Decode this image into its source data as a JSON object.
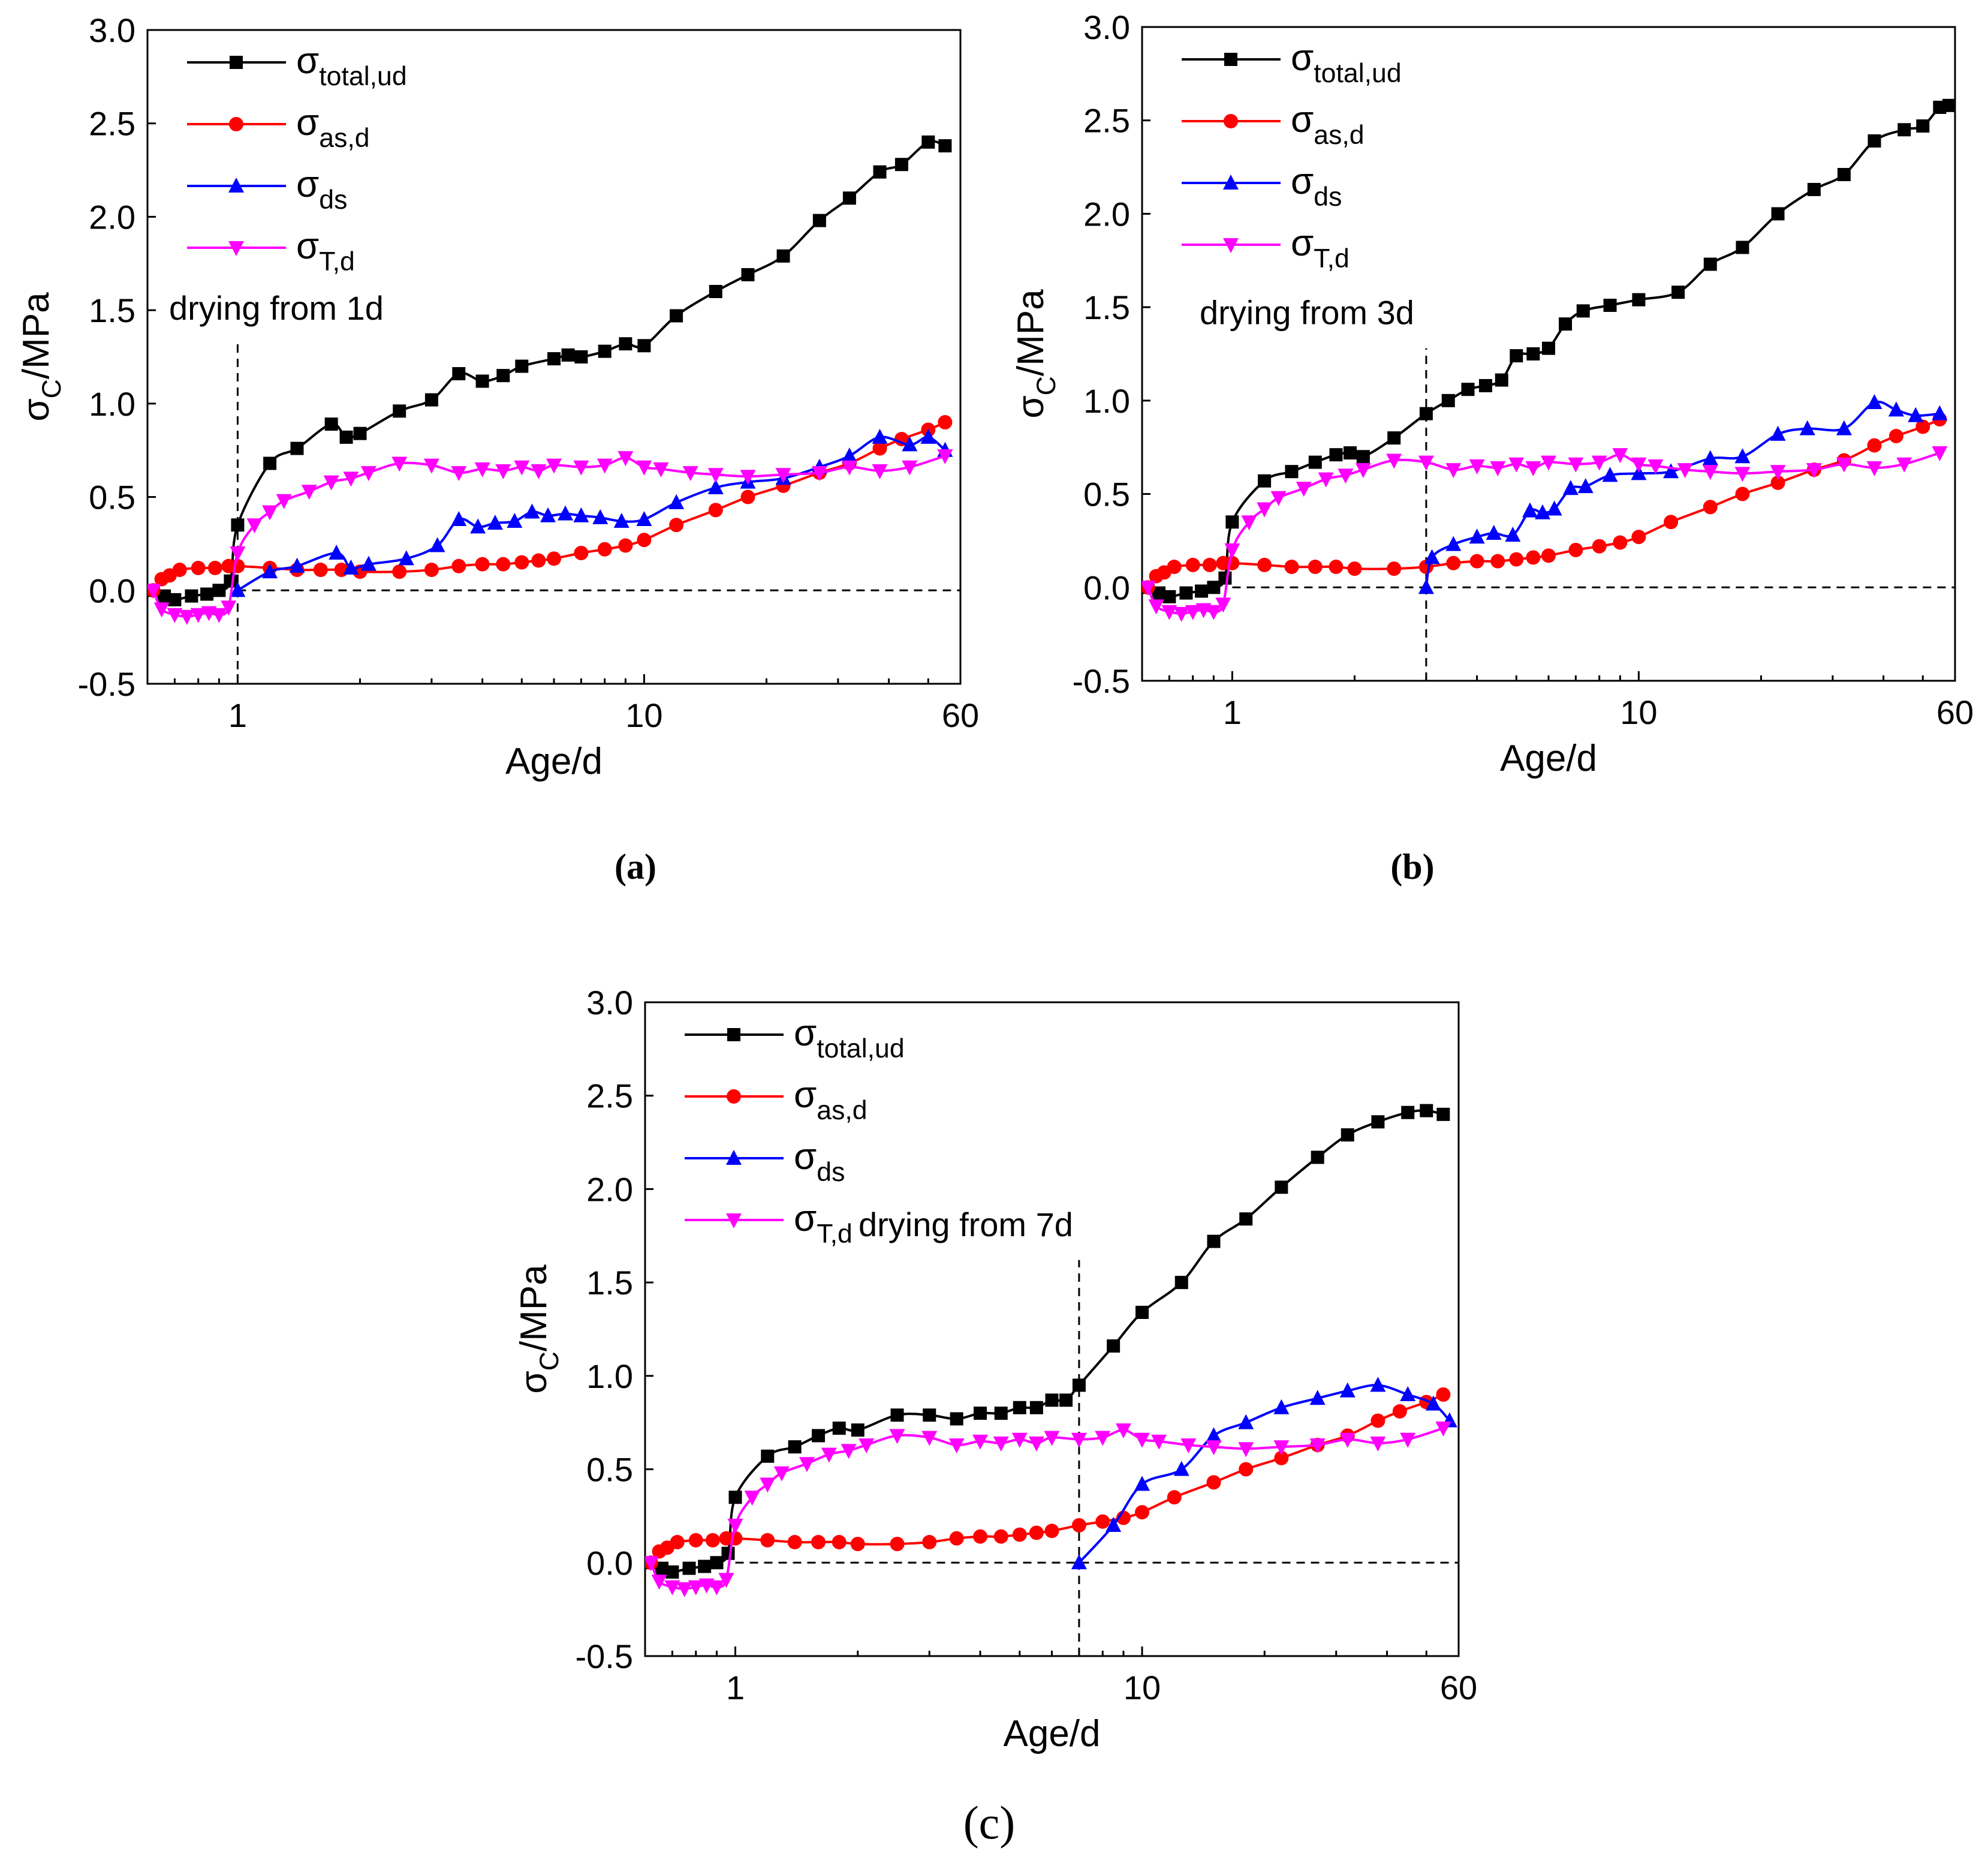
{
  "figure": {
    "panels": [
      {
        "caption": "(a)"
      },
      {
        "caption": "(b)"
      },
      {
        "caption": "(c)"
      }
    ]
  },
  "chart_data": [
    {
      "id": "a",
      "type": "line",
      "caption": "(a)",
      "xlabel": "Age/d",
      "ylabel": {
        "base": "σ",
        "sub": "C",
        "rest": "/MPa"
      },
      "xscale": "log",
      "xlim": [
        0.6,
        60
      ],
      "ylim": [
        -0.5,
        3.0
      ],
      "xticks": [
        1,
        10,
        60
      ],
      "xtick_labels": [
        "1",
        "10",
        "60"
      ],
      "yticks": [
        -0.5,
        0.0,
        0.5,
        1.0,
        1.5,
        2.0,
        2.5,
        3.0
      ],
      "ytick_labels": [
        "-0.5",
        "0.0",
        "0.5",
        "1.0",
        "1.5",
        "2.0",
        "2.5",
        "3.0"
      ],
      "annotation": {
        "text": "drying from 1d",
        "drying_start": 1
      },
      "legend_position": "top-left",
      "series": [
        {
          "key": "total",
          "name": {
            "base": "σ",
            "sub": "total,ud"
          },
          "color": "#000000",
          "marker": "square",
          "x": [
            0.62,
            0.66,
            0.7,
            0.77,
            0.84,
            0.9,
            0.96,
            1.0,
            1.2,
            1.4,
            1.7,
            1.85,
            2.0,
            2.5,
            3.0,
            3.5,
            4.0,
            4.5,
            5.0,
            6.0,
            6.5,
            7.0,
            8.0,
            9.0,
            10.0,
            12.0,
            15.0,
            18.0,
            22.0,
            27.0,
            32.0,
            38.0,
            43.0,
            50.0,
            55.0
          ],
          "y": [
            0.0,
            -0.03,
            -0.05,
            -0.03,
            -0.02,
            0.0,
            0.05,
            0.35,
            0.68,
            0.76,
            0.89,
            0.82,
            0.84,
            0.96,
            1.02,
            1.16,
            1.12,
            1.15,
            1.2,
            1.24,
            1.26,
            1.25,
            1.28,
            1.32,
            1.31,
            1.47,
            1.6,
            1.69,
            1.79,
            1.98,
            2.1,
            2.24,
            2.28,
            2.4,
            2.38
          ]
        },
        {
          "key": "as",
          "name": {
            "base": "σ",
            "sub": "as,d"
          },
          "color": "#ff0000",
          "marker": "circle",
          "x": [
            0.62,
            0.65,
            0.68,
            0.72,
            0.8,
            0.88,
            0.95,
            1.0,
            1.2,
            1.4,
            1.6,
            1.8,
            2.0,
            2.5,
            3.0,
            3.5,
            4.0,
            4.5,
            5.0,
            5.5,
            6.0,
            7.0,
            8.0,
            9.0,
            10.0,
            12.0,
            15.0,
            18.0,
            22.0,
            27.0,
            32.0,
            38.0,
            43.0,
            50.0,
            55.0
          ],
          "y": [
            0.0,
            0.06,
            0.08,
            0.11,
            0.12,
            0.12,
            0.13,
            0.13,
            0.12,
            0.11,
            0.11,
            0.11,
            0.1,
            0.1,
            0.11,
            0.13,
            0.14,
            0.14,
            0.15,
            0.16,
            0.17,
            0.2,
            0.22,
            0.24,
            0.27,
            0.35,
            0.43,
            0.5,
            0.56,
            0.63,
            0.68,
            0.76,
            0.81,
            0.86,
            0.9
          ]
        },
        {
          "key": "ds",
          "name": {
            "base": "σ",
            "sub": "ds"
          },
          "color": "#0000ff",
          "marker": "triangle-up",
          "x": [
            1.0,
            1.2,
            1.4,
            1.75,
            1.9,
            2.1,
            2.6,
            3.1,
            3.5,
            3.9,
            4.3,
            4.8,
            5.3,
            5.8,
            6.4,
            7.0,
            7.8,
            8.8,
            10.0,
            12.0,
            15.0,
            18.0,
            22.0,
            27.0,
            32.0,
            38.0,
            45.0,
            50.0,
            55.0
          ],
          "y": [
            0.0,
            0.1,
            0.13,
            0.2,
            0.12,
            0.14,
            0.17,
            0.24,
            0.38,
            0.34,
            0.36,
            0.37,
            0.42,
            0.4,
            0.41,
            0.4,
            0.39,
            0.37,
            0.38,
            0.47,
            0.55,
            0.58,
            0.6,
            0.66,
            0.72,
            0.82,
            0.78,
            0.82,
            0.75
          ]
        },
        {
          "key": "T",
          "name": {
            "base": "σ",
            "sub": "T,d"
          },
          "color": "#ff00ff",
          "marker": "triangle-down",
          "x": [
            0.62,
            0.65,
            0.7,
            0.75,
            0.8,
            0.85,
            0.9,
            0.95,
            1.0,
            1.1,
            1.2,
            1.3,
            1.5,
            1.7,
            1.9,
            2.1,
            2.5,
            3.0,
            3.5,
            4.0,
            4.5,
            5.0,
            5.5,
            6.0,
            7.0,
            8.0,
            9.0,
            10.0,
            11.0,
            13.0,
            15.0,
            18.0,
            22.0,
            27.0,
            32.0,
            38.0,
            45.0,
            55.0
          ],
          "y": [
            0.0,
            -0.1,
            -0.13,
            -0.14,
            -0.13,
            -0.12,
            -0.13,
            -0.09,
            0.2,
            0.35,
            0.42,
            0.48,
            0.53,
            0.58,
            0.6,
            0.63,
            0.68,
            0.67,
            0.63,
            0.65,
            0.64,
            0.66,
            0.64,
            0.67,
            0.66,
            0.67,
            0.71,
            0.66,
            0.65,
            0.63,
            0.62,
            0.61,
            0.62,
            0.63,
            0.66,
            0.64,
            0.66,
            0.72
          ]
        }
      ]
    },
    {
      "id": "b",
      "type": "line",
      "caption": "(b)",
      "xlabel": "Age/d",
      "ylabel": {
        "base": "σ",
        "sub": "C",
        "rest": "/MPa"
      },
      "xscale": "log",
      "xlim": [
        0.6,
        60
      ],
      "ylim": [
        -0.5,
        3.0
      ],
      "xticks": [
        1,
        10,
        60
      ],
      "xtick_labels": [
        "1",
        "10",
        "60"
      ],
      "yticks": [
        -0.5,
        0.0,
        0.5,
        1.0,
        1.5,
        2.0,
        2.5,
        3.0
      ],
      "ytick_labels": [
        "-0.5",
        "0.0",
        "0.5",
        "1.0",
        "1.5",
        "2.0",
        "2.5",
        "3.0"
      ],
      "annotation": {
        "text": "drying from 3d",
        "drying_start": 3
      },
      "legend_position": "top-left",
      "series": [
        {
          "key": "total",
          "name": {
            "base": "σ",
            "sub": "total,ud"
          },
          "color": "#000000",
          "marker": "square",
          "x": [
            0.62,
            0.66,
            0.7,
            0.77,
            0.84,
            0.9,
            0.96,
            1.0,
            1.2,
            1.4,
            1.6,
            1.8,
            1.95,
            2.1,
            2.5,
            3.0,
            3.4,
            3.8,
            4.2,
            4.6,
            5.0,
            5.5,
            6.0,
            6.6,
            7.3,
            8.5,
            10.0,
            12.5,
            15.0,
            18.0,
            22.0,
            27.0,
            32.0,
            38.0,
            45.0,
            50.0,
            55.0,
            58.0
          ],
          "y": [
            0.0,
            -0.03,
            -0.05,
            -0.03,
            -0.02,
            0.0,
            0.05,
            0.35,
            0.57,
            0.62,
            0.67,
            0.71,
            0.72,
            0.7,
            0.8,
            0.93,
            1.0,
            1.06,
            1.08,
            1.11,
            1.24,
            1.25,
            1.28,
            1.41,
            1.48,
            1.51,
            1.54,
            1.58,
            1.73,
            1.82,
            2.0,
            2.13,
            2.21,
            2.39,
            2.45,
            2.47,
            2.57,
            2.58
          ]
        },
        {
          "key": "as",
          "name": {
            "base": "σ",
            "sub": "as,d"
          },
          "color": "#ff0000",
          "marker": "circle",
          "x": [
            0.62,
            0.65,
            0.68,
            0.72,
            0.8,
            0.88,
            0.95,
            1.0,
            1.2,
            1.4,
            1.6,
            1.8,
            2.0,
            2.5,
            3.0,
            3.5,
            4.0,
            4.5,
            5.0,
            5.5,
            6.0,
            7.0,
            8.0,
            9.0,
            10.0,
            12.0,
            15.0,
            18.0,
            22.0,
            27.0,
            32.0,
            38.0,
            43.0,
            50.0,
            55.0
          ],
          "y": [
            0.0,
            0.06,
            0.08,
            0.11,
            0.12,
            0.12,
            0.13,
            0.13,
            0.12,
            0.11,
            0.11,
            0.11,
            0.1,
            0.1,
            0.11,
            0.13,
            0.14,
            0.14,
            0.15,
            0.16,
            0.17,
            0.2,
            0.22,
            0.24,
            0.27,
            0.35,
            0.43,
            0.5,
            0.56,
            0.63,
            0.68,
            0.76,
            0.81,
            0.86,
            0.9
          ]
        },
        {
          "key": "ds",
          "name": {
            "base": "σ",
            "sub": "ds"
          },
          "color": "#0000ff",
          "marker": "triangle-up",
          "x": [
            3.0,
            3.1,
            3.5,
            4.0,
            4.4,
            4.9,
            5.4,
            5.8,
            6.2,
            6.8,
            7.4,
            8.5,
            10.0,
            12.0,
            15.0,
            18.0,
            22.0,
            26.0,
            32.0,
            38.0,
            43.0,
            48.0,
            55.0
          ],
          "y": [
            0.0,
            0.16,
            0.23,
            0.27,
            0.29,
            0.28,
            0.41,
            0.4,
            0.42,
            0.53,
            0.54,
            0.6,
            0.61,
            0.62,
            0.69,
            0.7,
            0.82,
            0.85,
            0.85,
            0.99,
            0.95,
            0.92,
            0.93
          ]
        },
        {
          "key": "T",
          "name": {
            "base": "σ",
            "sub": "T,d"
          },
          "color": "#ff00ff",
          "marker": "triangle-down",
          "x": [
            0.62,
            0.65,
            0.7,
            0.75,
            0.8,
            0.85,
            0.9,
            0.95,
            1.0,
            1.1,
            1.2,
            1.3,
            1.5,
            1.7,
            1.9,
            2.1,
            2.5,
            3.0,
            3.5,
            4.0,
            4.5,
            5.0,
            5.5,
            6.0,
            7.0,
            8.0,
            9.0,
            10.0,
            11.0,
            13.0,
            15.0,
            18.0,
            22.0,
            27.0,
            32.0,
            38.0,
            45.0,
            55.0
          ],
          "y": [
            0.0,
            -0.1,
            -0.13,
            -0.14,
            -0.13,
            -0.12,
            -0.13,
            -0.09,
            0.2,
            0.35,
            0.42,
            0.48,
            0.53,
            0.58,
            0.6,
            0.63,
            0.68,
            0.67,
            0.63,
            0.65,
            0.64,
            0.66,
            0.64,
            0.67,
            0.66,
            0.67,
            0.71,
            0.66,
            0.65,
            0.63,
            0.62,
            0.61,
            0.62,
            0.63,
            0.66,
            0.64,
            0.66,
            0.72
          ]
        }
      ]
    },
    {
      "id": "c",
      "type": "line",
      "caption": "(c)",
      "xlabel": "Age/d",
      "ylabel": {
        "base": "σ",
        "sub": "C",
        "rest": "/MPa"
      },
      "xscale": "log",
      "xlim": [
        0.6,
        60
      ],
      "ylim": [
        -0.5,
        3.0
      ],
      "xticks": [
        1,
        10,
        60
      ],
      "xtick_labels": [
        "1",
        "10",
        "60"
      ],
      "yticks": [
        -0.5,
        0.0,
        0.5,
        1.0,
        1.5,
        2.0,
        2.5,
        3.0
      ],
      "ytick_labels": [
        "-0.5",
        "0.0",
        "0.5",
        "1.0",
        "1.5",
        "2.0",
        "2.5",
        "3.0"
      ],
      "annotation": {
        "text": "drying from 7d",
        "drying_start": 7
      },
      "legend_position": "top-left",
      "series": [
        {
          "key": "total",
          "name": {
            "base": "σ",
            "sub": "total,ud"
          },
          "color": "#000000",
          "marker": "square",
          "x": [
            0.62,
            0.66,
            0.7,
            0.77,
            0.84,
            0.9,
            0.96,
            1.0,
            1.2,
            1.4,
            1.6,
            1.8,
            2.0,
            2.5,
            3.0,
            3.5,
            4.0,
            4.5,
            5.0,
            5.5,
            6.0,
            6.5,
            7.0,
            8.5,
            10.0,
            12.5,
            15.0,
            18.0,
            22.0,
            27.0,
            32.0,
            38.0,
            45.0,
            50.0,
            55.0
          ],
          "y": [
            0.0,
            -0.03,
            -0.05,
            -0.03,
            -0.02,
            0.0,
            0.05,
            0.35,
            0.57,
            0.62,
            0.68,
            0.72,
            0.71,
            0.79,
            0.79,
            0.77,
            0.8,
            0.8,
            0.83,
            0.83,
            0.87,
            0.87,
            0.95,
            1.16,
            1.34,
            1.5,
            1.72,
            1.84,
            2.01,
            2.17,
            2.29,
            2.36,
            2.41,
            2.42,
            2.4
          ]
        },
        {
          "key": "as",
          "name": {
            "base": "σ",
            "sub": "as,d"
          },
          "color": "#ff0000",
          "marker": "circle",
          "x": [
            0.62,
            0.65,
            0.68,
            0.72,
            0.8,
            0.88,
            0.95,
            1.0,
            1.2,
            1.4,
            1.6,
            1.8,
            2.0,
            2.5,
            3.0,
            3.5,
            4.0,
            4.5,
            5.0,
            5.5,
            6.0,
            7.0,
            8.0,
            9.0,
            10.0,
            12.0,
            15.0,
            18.0,
            22.0,
            27.0,
            32.0,
            38.0,
            43.0,
            50.0,
            55.0
          ],
          "y": [
            0.0,
            0.06,
            0.08,
            0.11,
            0.12,
            0.12,
            0.13,
            0.13,
            0.12,
            0.11,
            0.11,
            0.11,
            0.1,
            0.1,
            0.11,
            0.13,
            0.14,
            0.14,
            0.15,
            0.16,
            0.17,
            0.2,
            0.22,
            0.24,
            0.27,
            0.35,
            0.43,
            0.5,
            0.56,
            0.63,
            0.68,
            0.76,
            0.81,
            0.86,
            0.9
          ]
        },
        {
          "key": "ds",
          "name": {
            "base": "σ",
            "sub": "ds"
          },
          "color": "#0000ff",
          "marker": "triangle-up",
          "x": [
            7.0,
            8.5,
            10.0,
            12.5,
            15.0,
            18.0,
            22.0,
            27.0,
            32.0,
            38.0,
            45.0,
            52.0,
            57.0
          ],
          "y": [
            0.0,
            0.2,
            0.42,
            0.5,
            0.68,
            0.75,
            0.83,
            0.88,
            0.92,
            0.95,
            0.9,
            0.85,
            0.76
          ]
        },
        {
          "key": "T",
          "name": {
            "base": "σ",
            "sub": "T,d"
          },
          "color": "#ff00ff",
          "marker": "triangle-down",
          "x": [
            0.62,
            0.65,
            0.7,
            0.75,
            0.8,
            0.85,
            0.9,
            0.95,
            1.0,
            1.1,
            1.2,
            1.3,
            1.5,
            1.7,
            1.9,
            2.1,
            2.5,
            3.0,
            3.5,
            4.0,
            4.5,
            5.0,
            5.5,
            6.0,
            7.0,
            8.0,
            9.0,
            10.0,
            11.0,
            13.0,
            15.0,
            18.0,
            22.0,
            27.0,
            32.0,
            38.0,
            45.0,
            55.0
          ],
          "y": [
            0.0,
            -0.1,
            -0.13,
            -0.14,
            -0.13,
            -0.12,
            -0.13,
            -0.09,
            0.2,
            0.35,
            0.42,
            0.48,
            0.53,
            0.58,
            0.6,
            0.63,
            0.68,
            0.67,
            0.63,
            0.65,
            0.64,
            0.66,
            0.64,
            0.67,
            0.66,
            0.67,
            0.71,
            0.66,
            0.65,
            0.63,
            0.62,
            0.61,
            0.62,
            0.63,
            0.66,
            0.64,
            0.66,
            0.72
          ]
        }
      ]
    }
  ]
}
